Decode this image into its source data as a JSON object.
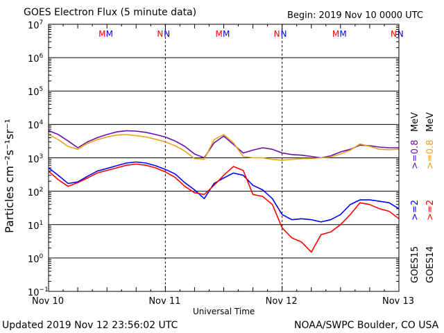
{
  "header": {
    "title": "GOES Electron Flux (5 minute data)",
    "begin": "Begin: 2019 Nov 10 0000 UTC"
  },
  "footer": {
    "updated": "Updated 2019 Nov 12 23:56:02 UTC",
    "credit": "NOAA/SWPC Boulder, CO USA"
  },
  "chart_data": {
    "type": "line",
    "title": "GOES Electron Flux (5 minute data)",
    "xlabel": "Universal Time",
    "ylabel": "Particles cm⁻²s⁻¹sr⁻¹",
    "yscale": "log",
    "ylim": [
      0.1,
      10000000
    ],
    "xlim": [
      0,
      72
    ],
    "x_unit": "hours since 2019 Nov 10 0000 UTC",
    "x_ticks": [
      {
        "x": 0,
        "label": "Nov 10"
      },
      {
        "x": 24,
        "label": "Nov 11"
      },
      {
        "x": 48,
        "label": "Nov 12"
      },
      {
        "x": 72,
        "label": "Nov 13"
      }
    ],
    "y_ticks": [
      {
        "exp": 7,
        "label": "10",
        "sup": "7"
      },
      {
        "exp": 6,
        "label": "10",
        "sup": "6"
      },
      {
        "exp": 5,
        "label": "10",
        "sup": "5"
      },
      {
        "exp": 4,
        "label": "10",
        "sup": "4"
      },
      {
        "exp": 3,
        "label": "10",
        "sup": "3"
      },
      {
        "exp": 2,
        "label": "10",
        "sup": "2"
      },
      {
        "exp": 1,
        "label": "10",
        "sup": "1"
      },
      {
        "exp": 0,
        "label": "10",
        "sup": "0"
      },
      {
        "exp": -1,
        "label": "10",
        "sup": "−1"
      }
    ],
    "threshold": 1000,
    "grid": true,
    "markers": [
      {
        "x": 11.0,
        "label": "M",
        "color": "#ff0000"
      },
      {
        "x": 12.5,
        "label": "M",
        "color": "#0000ff"
      },
      {
        "x": 23.0,
        "label": "N",
        "color": "#ff0000"
      },
      {
        "x": 24.4,
        "label": "N",
        "color": "#0000ff"
      },
      {
        "x": 35.0,
        "label": "M",
        "color": "#ff0000"
      },
      {
        "x": 36.5,
        "label": "M",
        "color": "#0000ff"
      },
      {
        "x": 47.0,
        "label": "N",
        "color": "#ff0000"
      },
      {
        "x": 48.4,
        "label": "N",
        "color": "#0000ff"
      },
      {
        "x": 59.0,
        "label": "M",
        "color": "#ff0000"
      },
      {
        "x": 60.5,
        "label": "M",
        "color": "#0000ff"
      },
      {
        "x": 71.0,
        "label": "N",
        "color": "#ff0000"
      },
      {
        "x": 72.4,
        "label": "N",
        "color": "#0000ff"
      }
    ],
    "legend": {
      "position": "right",
      "groups": [
        {
          "satellite": "GOES15",
          "entries": [
            {
              "text": ">=2",
              "color": "#0000ff"
            },
            {
              "text": ">=0.8",
              "color": "#6a0dad"
            }
          ]
        },
        {
          "satellite": "GOES14",
          "entries": [
            {
              "text": ">=2",
              "color": "#ff0000"
            },
            {
              "text": ">=0.8",
              "color": "#e8a317"
            }
          ]
        }
      ],
      "unit": "MeV"
    },
    "series": [
      {
        "name": "GOES15 >=0.8 MeV",
        "color": "#6a0dad",
        "x": [
          0,
          2,
          4,
          6,
          8,
          10,
          12,
          14,
          16,
          18,
          20,
          22,
          24,
          26,
          28,
          30,
          32,
          34,
          36,
          38,
          40,
          42,
          44,
          46,
          48,
          50,
          52,
          54,
          56,
          58,
          60,
          62,
          64,
          66,
          68,
          70,
          72
        ],
        "y": [
          6500,
          5000,
          3200,
          2000,
          3000,
          4000,
          5000,
          6000,
          6500,
          6300,
          5800,
          5000,
          4200,
          3200,
          2200,
          1300,
          1000,
          2800,
          4500,
          2500,
          1400,
          1700,
          2000,
          1800,
          1400,
          1250,
          1200,
          1100,
          1000,
          1150,
          1500,
          1800,
          2400,
          2300,
          2100,
          2000,
          2000
        ]
      },
      {
        "name": "GOES14 >=0.8 MeV",
        "color": "#e8a317",
        "x": [
          0,
          2,
          4,
          6,
          8,
          10,
          12,
          14,
          16,
          18,
          20,
          22,
          24,
          26,
          28,
          30,
          32,
          34,
          36,
          38,
          40,
          42,
          44,
          46,
          48,
          50,
          52,
          54,
          56,
          58,
          60,
          62,
          64,
          66,
          68,
          70,
          72
        ],
        "y": [
          5000,
          3500,
          2200,
          1800,
          2700,
          3500,
          4200,
          4800,
          5000,
          4600,
          4200,
          3600,
          3000,
          2300,
          1600,
          950,
          900,
          3500,
          5000,
          2800,
          1100,
          1000,
          1000,
          900,
          850,
          900,
          950,
          950,
          1000,
          1050,
          1300,
          1700,
          2600,
          2200,
          1800,
          1750,
          1800
        ]
      },
      {
        "name": "GOES15 >=2 MeV",
        "color": "#0000ff",
        "x": [
          0,
          2,
          4,
          6,
          8,
          10,
          12,
          14,
          16,
          18,
          20,
          22,
          24,
          26,
          28,
          30,
          32,
          34,
          36,
          38,
          40,
          42,
          44,
          46,
          48,
          50,
          52,
          54,
          56,
          58,
          60,
          62,
          64,
          66,
          68,
          70,
          72
        ],
        "y": [
          500,
          300,
          170,
          190,
          280,
          400,
          480,
          580,
          700,
          750,
          700,
          580,
          450,
          330,
          180,
          110,
          60,
          170,
          250,
          350,
          300,
          150,
          110,
          60,
          20,
          14,
          15,
          14,
          12,
          14,
          20,
          40,
          55,
          55,
          50,
          45,
          30
        ]
      },
      {
        "name": "GOES14 >=2 MeV",
        "color": "#ff0000",
        "x": [
          0,
          2,
          4,
          6,
          8,
          10,
          12,
          14,
          16,
          18,
          20,
          22,
          24,
          26,
          28,
          30,
          32,
          34,
          36,
          38,
          40,
          42,
          44,
          46,
          48,
          50,
          52,
          54,
          56,
          58,
          60,
          62,
          64,
          66,
          68,
          70,
          72
        ],
        "y": [
          400,
          220,
          140,
          180,
          250,
          350,
          420,
          500,
          600,
          650,
          600,
          500,
          380,
          260,
          140,
          90,
          80,
          150,
          300,
          550,
          420,
          80,
          70,
          40,
          8,
          4,
          3,
          1.5,
          5,
          6,
          10,
          20,
          45,
          40,
          30,
          25,
          15
        ]
      }
    ]
  }
}
